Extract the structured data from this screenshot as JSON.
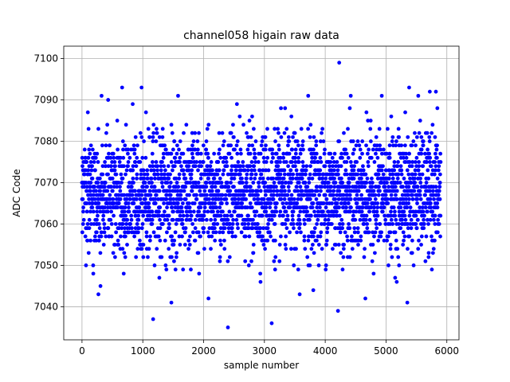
{
  "chart_data": {
    "type": "scatter",
    "title": "channel058 higain raw data",
    "xlabel": "sample number",
    "ylabel": "ADC Code",
    "xlim": [
      -300,
      6200
    ],
    "ylim": [
      7032,
      7103
    ],
    "xticks": [
      0,
      1000,
      2000,
      3000,
      4000,
      5000,
      6000
    ],
    "yticks": [
      7040,
      7050,
      7060,
      7070,
      7080,
      7090,
      7100
    ],
    "grid": true,
    "marker_color": "#0000ff",
    "n_samples": 5900,
    "bulk_range": [
      7050,
      7085
    ],
    "notable_points": [
      {
        "x": 4230,
        "y": 7099
      },
      {
        "x": 2400,
        "y": 7035
      },
      {
        "x": 3120,
        "y": 7036
      },
      {
        "x": 1170,
        "y": 7037
      },
      {
        "x": 4210,
        "y": 7039
      },
      {
        "x": 1470,
        "y": 7041
      },
      {
        "x": 5350,
        "y": 7041
      },
      {
        "x": 2080,
        "y": 7042
      },
      {
        "x": 4660,
        "y": 7042
      },
      {
        "x": 270,
        "y": 7043
      },
      {
        "x": 3580,
        "y": 7043
      },
      {
        "x": 980,
        "y": 7093
      },
      {
        "x": 660,
        "y": 7093
      },
      {
        "x": 5380,
        "y": 7093
      },
      {
        "x": 5720,
        "y": 7092
      },
      {
        "x": 5820,
        "y": 7092
      },
      {
        "x": 4930,
        "y": 7091
      },
      {
        "x": 3720,
        "y": 7091
      },
      {
        "x": 4420,
        "y": 7091
      },
      {
        "x": 1580,
        "y": 7091
      },
      {
        "x": 430,
        "y": 7090
      },
      {
        "x": 5530,
        "y": 7091
      }
    ]
  }
}
